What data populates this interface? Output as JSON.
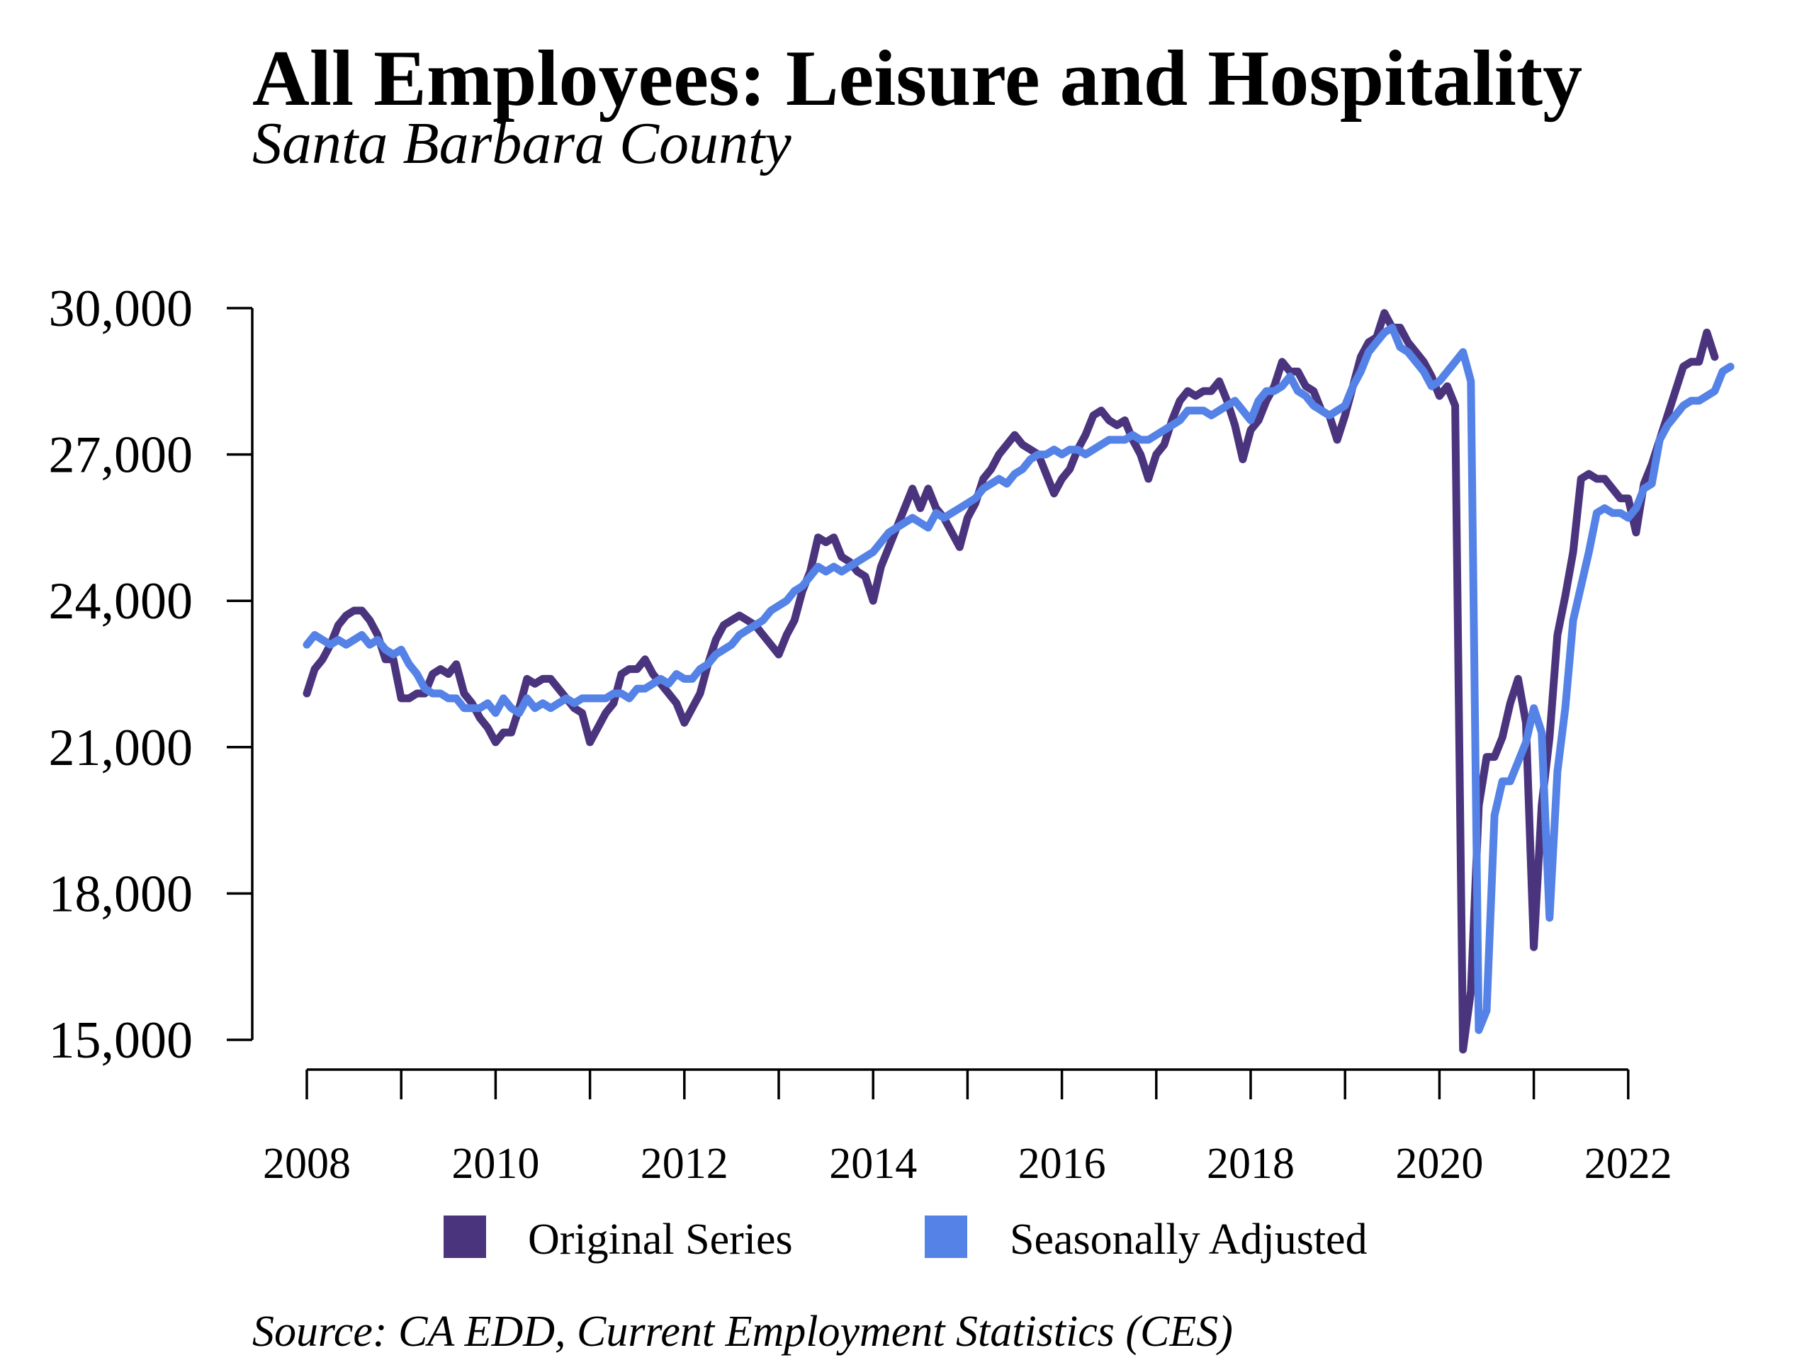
{
  "chart_data": {
    "type": "line",
    "title": "All Employees: Leisure and Hospitality",
    "subtitle": "Santa Barbara County",
    "source": "Source: CA EDD, Current Employment Statistics (CES)",
    "x_start": "2008-01",
    "x_end": "2022-12",
    "x_tick_labels": [
      "2008",
      "2010",
      "2012",
      "2014",
      "2016",
      "2018",
      "2020",
      "2022"
    ],
    "y_tick_labels": [
      "30,000",
      "27,000",
      "24,000",
      "21,000",
      "18,000",
      "15,000"
    ],
    "ylim": [
      15000,
      30000
    ],
    "grid": false,
    "legend_position": "bottom",
    "series": [
      {
        "name": "Original Series",
        "color": "#4b347e",
        "values": [
          22100,
          22600,
          22800,
          23100,
          23500,
          23700,
          23800,
          23800,
          23600,
          23300,
          22800,
          22800,
          22000,
          22000,
          22100,
          22100,
          22500,
          22600,
          22500,
          22700,
          22100,
          21900,
          21600,
          21400,
          21100,
          21300,
          21300,
          21800,
          22400,
          22300,
          22400,
          22400,
          22200,
          22000,
          21800,
          21700,
          21100,
          21400,
          21700,
          21900,
          22500,
          22600,
          22600,
          22800,
          22500,
          22300,
          22100,
          21900,
          21500,
          21800,
          22100,
          22700,
          23200,
          23500,
          23600,
          23700,
          23600,
          23500,
          23300,
          23100,
          22900,
          23300,
          23600,
          24200,
          24600,
          25300,
          25200,
          25300,
          24900,
          24800,
          24600,
          24500,
          24000,
          24700,
          25100,
          25500,
          25900,
          26300,
          25900,
          26300,
          25900,
          25700,
          25400,
          25100,
          25700,
          26000,
          26500,
          26700,
          27000,
          27200,
          27400,
          27200,
          27100,
          27000,
          26600,
          26200,
          26500,
          26700,
          27100,
          27400,
          27800,
          27900,
          27700,
          27600,
          27700,
          27300,
          27000,
          26500,
          27000,
          27200,
          27700,
          28100,
          28300,
          28200,
          28300,
          28300,
          28500,
          28100,
          27600,
          26900,
          27500,
          27700,
          28100,
          28400,
          28900,
          28700,
          28700,
          28400,
          28300,
          27900,
          27800,
          27300,
          27800,
          28400,
          29000,
          29300,
          29400,
          29900,
          29600,
          29600,
          29300,
          29100,
          28900,
          28600,
          28200,
          28400,
          28000,
          14800,
          16000,
          19800,
          20800,
          20800,
          21200,
          21900,
          22400,
          21500,
          16900,
          19800,
          21200,
          23300,
          24100,
          25000,
          26500,
          26600,
          26500,
          26500,
          26300,
          26100,
          26100,
          25400,
          26400,
          26800,
          27300,
          27800,
          28300,
          28800,
          28900,
          28900,
          29500,
          29000
        ]
      },
      {
        "name": "Seasonally Adjusted",
        "color": "#5482e6",
        "values": [
          23100,
          23300,
          23200,
          23100,
          23200,
          23100,
          23200,
          23300,
          23100,
          23200,
          23000,
          22900,
          23000,
          22700,
          22500,
          22200,
          22100,
          22100,
          22000,
          22000,
          21800,
          21800,
          21800,
          21900,
          21700,
          22000,
          21800,
          21700,
          22000,
          21800,
          21900,
          21800,
          21900,
          22000,
          21900,
          22000,
          22000,
          22000,
          22000,
          22100,
          22100,
          22000,
          22200,
          22200,
          22300,
          22400,
          22300,
          22500,
          22400,
          22400,
          22600,
          22700,
          22900,
          23000,
          23100,
          23300,
          23400,
          23500,
          23600,
          23800,
          23900,
          24000,
          24200,
          24300,
          24500,
          24700,
          24600,
          24700,
          24600,
          24700,
          24800,
          24900,
          25000,
          25200,
          25400,
          25500,
          25600,
          25700,
          25600,
          25500,
          25800,
          25700,
          25800,
          25900,
          26000,
          26100,
          26300,
          26400,
          26500,
          26400,
          26600,
          26700,
          26900,
          27000,
          27000,
          27100,
          27000,
          27100,
          27100,
          27000,
          27100,
          27200,
          27300,
          27300,
          27300,
          27400,
          27300,
          27300,
          27400,
          27500,
          27600,
          27700,
          27900,
          27900,
          27900,
          27800,
          27900,
          28000,
          28100,
          27900,
          27700,
          28100,
          28300,
          28300,
          28400,
          28600,
          28300,
          28200,
          28000,
          27900,
          27800,
          27900,
          28000,
          28400,
          28700,
          29100,
          29300,
          29500,
          29600,
          29200,
          29100,
          28900,
          28700,
          28400,
          28500,
          28700,
          28900,
          29100,
          28500,
          15200,
          15600,
          19600,
          20300,
          20300,
          20700,
          21100,
          21800,
          21300,
          17500,
          20500,
          21800,
          23600,
          24300,
          25000,
          25800,
          25900,
          25800,
          25800,
          25700,
          25900,
          26300,
          26400,
          27300,
          27600,
          27800,
          28000,
          28100,
          28100,
          28200,
          28300,
          28700,
          28800
        ]
      }
    ]
  }
}
